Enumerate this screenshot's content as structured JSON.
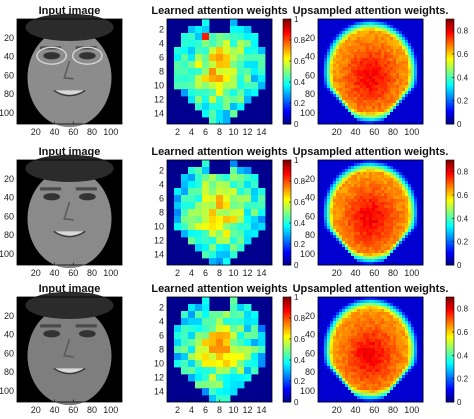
{
  "figure": {
    "rows": [
      {
        "panels": [
          {
            "kind": "face",
            "title": "Input image",
            "face_tone": "#8c8c8c",
            "glasses": true,
            "xticks": [
              "20",
              "40",
              "60",
              "80",
              "100"
            ],
            "yticks": [
              "20",
              "40",
              "60",
              "80",
              "100"
            ]
          },
          {
            "kind": "grid",
            "title": "Learned attention weights",
            "xticks": [
              "2",
              "4",
              "6",
              "8",
              "10",
              "12",
              "14"
            ],
            "yticks": [
              "2",
              "4",
              "6",
              "8",
              "10",
              "12",
              "14"
            ]
          },
          {
            "kind": "smooth",
            "title": "Upsampled attention weights.",
            "xticks": [
              "20",
              "40",
              "60",
              "80",
              "100"
            ],
            "yticks": [
              "20",
              "40",
              "60",
              "80",
              "100"
            ]
          }
        ]
      },
      {
        "panels": [
          {
            "kind": "face",
            "title": "Input image",
            "face_tone": "#8a8a8a",
            "glasses": false,
            "xticks": [
              "20",
              "40",
              "60",
              "80",
              "100"
            ],
            "yticks": [
              "20",
              "40",
              "60",
              "80",
              "100"
            ]
          },
          {
            "kind": "grid",
            "title": "Learned attention weights",
            "xticks": [
              "2",
              "4",
              "6",
              "8",
              "10",
              "12",
              "14"
            ],
            "yticks": [
              "2",
              "4",
              "6",
              "8",
              "10",
              "12",
              "14"
            ]
          },
          {
            "kind": "smooth",
            "title": "Upsampled attention weights.",
            "xticks": [
              "20",
              "40",
              "60",
              "80",
              "100"
            ],
            "yticks": [
              "20",
              "40",
              "60",
              "80",
              "100"
            ]
          }
        ]
      },
      {
        "panels": [
          {
            "kind": "face",
            "title": "Input image",
            "face_tone": "#7e7e7e",
            "glasses": false,
            "xticks": [
              "20",
              "40",
              "60",
              "80",
              "100"
            ],
            "yticks": [
              "20",
              "40",
              "60",
              "80",
              "100"
            ]
          },
          {
            "kind": "grid",
            "title": "Learned attention weights",
            "xticks": [
              "2",
              "4",
              "6",
              "8",
              "10",
              "12",
              "14"
            ],
            "yticks": [
              "2",
              "4",
              "6",
              "8",
              "10",
              "12",
              "14"
            ]
          },
          {
            "kind": "smooth",
            "title": "Upsampled attention weights.",
            "xticks": [
              "20",
              "40",
              "60",
              "80",
              "100"
            ],
            "yticks": [
              "20",
              "40",
              "60",
              "80",
              "100"
            ]
          }
        ]
      }
    ],
    "grid_colorbar_ticks": [
      "0",
      "0.2",
      "0.4",
      "0.6",
      "0.8",
      "1"
    ],
    "smooth_colorbar_ticks": [
      "0",
      "0.2",
      "0.4",
      "0.6",
      "0.8"
    ],
    "colormap": "jet",
    "colors": {
      "background": "#ffffff",
      "mask_blue": "#00008f",
      "frame": "#000000"
    }
  }
}
